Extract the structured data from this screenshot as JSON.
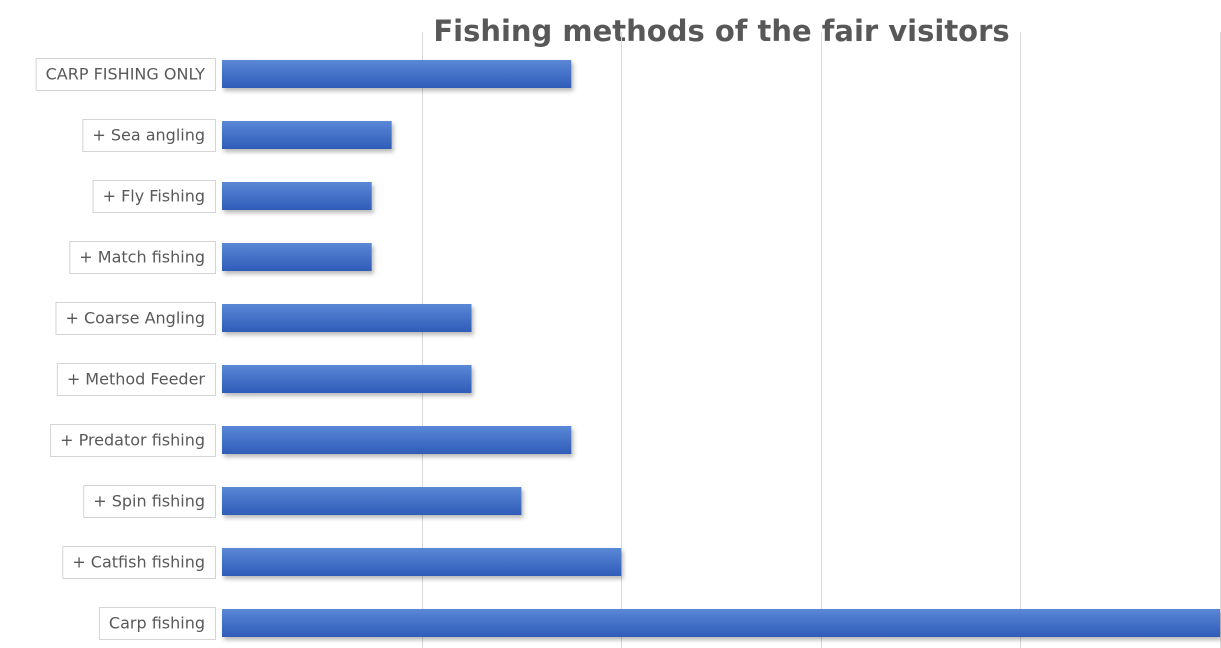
{
  "chart_data": {
    "type": "bar",
    "orientation": "horizontal",
    "title": "Fishing methods of the fair visitors",
    "xlabel": "",
    "ylabel": "",
    "categories": [
      "CARP FISHING ONLY",
      "+ Sea angling",
      "+ Fly Fishing",
      "+ Match fishing",
      "+ Coarse Angling",
      "+ Method Feeder",
      "+ Predator fishing",
      "+ Spin fishing",
      "+ Catfish fishing",
      "Carp fishing"
    ],
    "values": [
      7,
      3.4,
      3,
      3,
      5,
      5,
      7,
      6,
      8,
      20
    ],
    "xlim": [
      0,
      20
    ],
    "x_gridlines": [
      0,
      4,
      8,
      12,
      16,
      20
    ],
    "grid": true,
    "legend": "none",
    "colors": {
      "bar_top": "#5b87d6",
      "bar_bottom": "#2f5cb8",
      "title": "#585858",
      "label": "#595959",
      "grid": "#d9d9d9"
    }
  }
}
